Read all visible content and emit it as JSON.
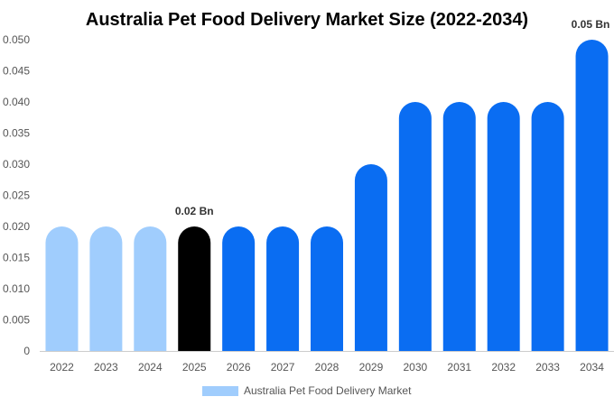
{
  "chart_data": {
    "type": "bar",
    "title": "Australia Pet Food Delivery Market Size (2022-2034)",
    "xlabel": "",
    "ylabel": "",
    "categories": [
      "2022",
      "2023",
      "2024",
      "2025",
      "2026",
      "2027",
      "2028",
      "2029",
      "2030",
      "2031",
      "2032",
      "2033",
      "2034"
    ],
    "values": [
      0.02,
      0.02,
      0.02,
      0.02,
      0.02,
      0.02,
      0.02,
      0.03,
      0.04,
      0.04,
      0.04,
      0.04,
      0.05
    ],
    "bar_colors": [
      "#a0cdfd",
      "#a0cdfd",
      "#a0cdfd",
      "#000000",
      "#0a6df2",
      "#0a6df2",
      "#0a6df2",
      "#0a6df2",
      "#0a6df2",
      "#0a6df2",
      "#0a6df2",
      "#0a6df2",
      "#0a6df2"
    ],
    "ylim": [
      0,
      0.05
    ],
    "yticks": [
      "0",
      "0.005",
      "0.010",
      "0.015",
      "0.020",
      "0.025",
      "0.030",
      "0.035",
      "0.040",
      "0.045",
      "0.050"
    ],
    "data_labels": [
      {
        "category": "2025",
        "text": "0.02 Bn"
      },
      {
        "category": "2034",
        "text": "0.05 Bn"
      }
    ],
    "legend": {
      "position": "bottom",
      "entries": [
        {
          "name": "Australia Pet Food Delivery Market",
          "color": "#a0cdfd"
        }
      ]
    },
    "grid": false
  }
}
